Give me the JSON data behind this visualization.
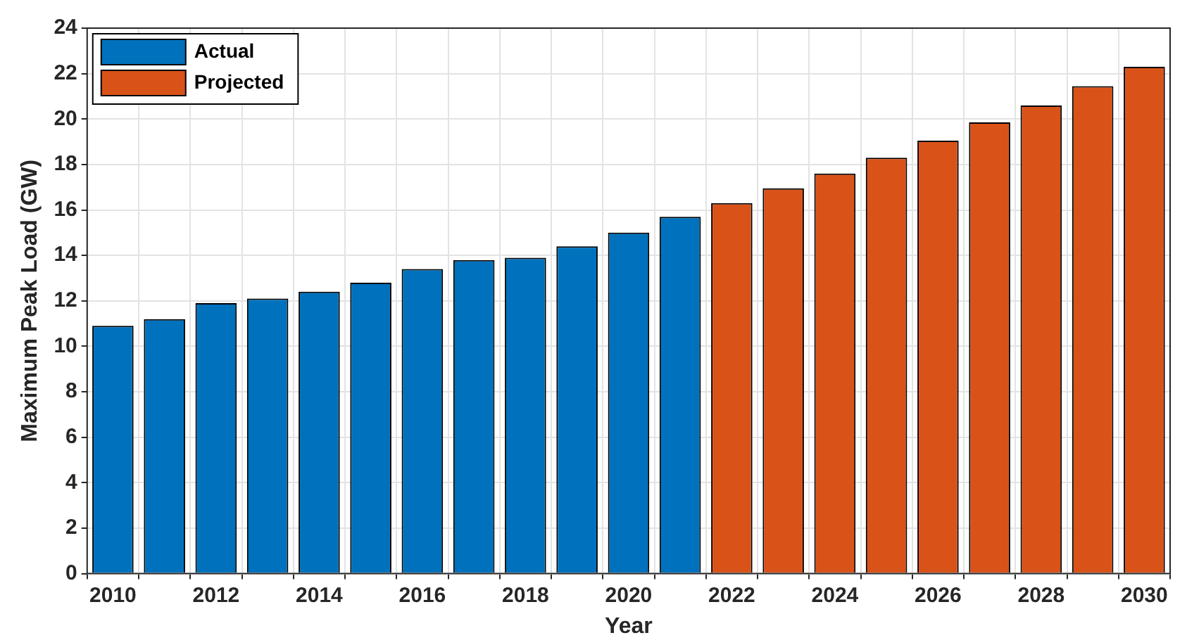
{
  "chart_data": {
    "type": "bar",
    "xlabel": "Year",
    "ylabel": "Maximum Peak Load (GW)",
    "categories": [
      "2010",
      null,
      "2012",
      null,
      "2014",
      null,
      "2016",
      null,
      "2018",
      null,
      "2020",
      null,
      "2022",
      null,
      "2024",
      null,
      "2026",
      null,
      "2028",
      null,
      "2030"
    ],
    "series": [
      {
        "name": "Actual",
        "color": "#0072bd",
        "values": [
          10.9,
          11.2,
          11.9,
          12.1,
          12.4,
          12.8,
          13.4,
          13.8,
          13.9,
          14.4,
          15.0,
          15.7,
          null,
          null,
          null,
          null,
          null,
          null,
          null,
          null,
          null
        ]
      },
      {
        "name": "Projected",
        "color": "#d95319",
        "values": [
          null,
          null,
          null,
          null,
          null,
          null,
          null,
          null,
          null,
          null,
          null,
          null,
          16.3,
          16.95,
          17.6,
          18.3,
          19.05,
          19.85,
          20.6,
          21.45,
          22.3
        ]
      }
    ],
    "ylim": [
      0,
      24
    ],
    "yticks": [
      0,
      2,
      4,
      6,
      8,
      10,
      12,
      14,
      16,
      18,
      20,
      22,
      24
    ],
    "grid": true,
    "legend": "top left"
  }
}
